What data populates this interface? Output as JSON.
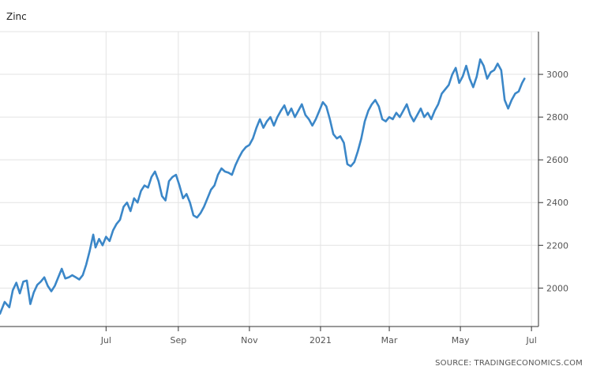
{
  "chart_data": {
    "type": "line",
    "title": "Zinc",
    "source": "SOURCE: TRADINGECONOMICS.COM",
    "ylim": [
      1820,
      3200
    ],
    "y_ticks": [
      2000,
      2200,
      2400,
      2600,
      2800,
      3000
    ],
    "x_ticks": [
      {
        "label": "Jul",
        "date": "2020-07-01"
      },
      {
        "label": "Sep",
        "date": "2020-09-01"
      },
      {
        "label": "Nov",
        "date": "2020-11-01"
      },
      {
        "label": "2021",
        "date": "2021-01-01"
      },
      {
        "label": "Mar",
        "date": "2021-03-01"
      },
      {
        "label": "May",
        "date": "2021-05-01"
      },
      {
        "label": "Jul",
        "date": "2021-07-01"
      }
    ],
    "grid": true,
    "axis_side": "right",
    "color": "#3b87c8",
    "series": [
      {
        "name": "",
        "points": [
          [
            "2020-04-01",
            1880
          ],
          [
            "2020-04-05",
            1935
          ],
          [
            "2020-04-09",
            1910
          ],
          [
            "2020-04-12",
            1990
          ],
          [
            "2020-04-15",
            2025
          ],
          [
            "2020-04-18",
            1975
          ],
          [
            "2020-04-21",
            2030
          ],
          [
            "2020-04-24",
            2035
          ],
          [
            "2020-04-27",
            1925
          ],
          [
            "2020-04-30",
            1980
          ],
          [
            "2020-05-03",
            2015
          ],
          [
            "2020-05-06",
            2030
          ],
          [
            "2020-05-09",
            2050
          ],
          [
            "2020-05-12",
            2010
          ],
          [
            "2020-05-15",
            1985
          ],
          [
            "2020-05-18",
            2010
          ],
          [
            "2020-05-21",
            2050
          ],
          [
            "2020-05-24",
            2090
          ],
          [
            "2020-05-27",
            2045
          ],
          [
            "2020-05-30",
            2050
          ],
          [
            "2020-06-02",
            2060
          ],
          [
            "2020-06-05",
            2050
          ],
          [
            "2020-06-08",
            2040
          ],
          [
            "2020-06-11",
            2060
          ],
          [
            "2020-06-14",
            2110
          ],
          [
            "2020-06-17",
            2175
          ],
          [
            "2020-06-20",
            2250
          ],
          [
            "2020-06-22",
            2190
          ],
          [
            "2020-06-25",
            2230
          ],
          [
            "2020-06-28",
            2200
          ],
          [
            "2020-07-01",
            2240
          ],
          [
            "2020-07-04",
            2220
          ],
          [
            "2020-07-07",
            2270
          ],
          [
            "2020-07-10",
            2300
          ],
          [
            "2020-07-13",
            2320
          ],
          [
            "2020-07-16",
            2380
          ],
          [
            "2020-07-19",
            2400
          ],
          [
            "2020-07-22",
            2360
          ],
          [
            "2020-07-25",
            2420
          ],
          [
            "2020-07-28",
            2400
          ],
          [
            "2020-07-31",
            2455
          ],
          [
            "2020-08-03",
            2480
          ],
          [
            "2020-08-06",
            2470
          ],
          [
            "2020-08-09",
            2520
          ],
          [
            "2020-08-12",
            2545
          ],
          [
            "2020-08-15",
            2500
          ],
          [
            "2020-08-18",
            2430
          ],
          [
            "2020-08-21",
            2410
          ],
          [
            "2020-08-24",
            2500
          ],
          [
            "2020-08-27",
            2520
          ],
          [
            "2020-08-30",
            2530
          ],
          [
            "2020-09-02",
            2480
          ],
          [
            "2020-09-05",
            2420
          ],
          [
            "2020-09-08",
            2440
          ],
          [
            "2020-09-11",
            2400
          ],
          [
            "2020-09-14",
            2340
          ],
          [
            "2020-09-17",
            2330
          ],
          [
            "2020-09-20",
            2350
          ],
          [
            "2020-09-23",
            2380
          ],
          [
            "2020-09-26",
            2420
          ],
          [
            "2020-09-29",
            2460
          ],
          [
            "2020-10-02",
            2480
          ],
          [
            "2020-10-05",
            2530
          ],
          [
            "2020-10-08",
            2560
          ],
          [
            "2020-10-11",
            2545
          ],
          [
            "2020-10-14",
            2540
          ],
          [
            "2020-10-17",
            2530
          ],
          [
            "2020-10-20",
            2575
          ],
          [
            "2020-10-23",
            2610
          ],
          [
            "2020-10-26",
            2640
          ],
          [
            "2020-10-29",
            2660
          ],
          [
            "2020-11-01",
            2670
          ],
          [
            "2020-11-04",
            2700
          ],
          [
            "2020-11-07",
            2750
          ],
          [
            "2020-11-10",
            2790
          ],
          [
            "2020-11-13",
            2750
          ],
          [
            "2020-11-16",
            2780
          ],
          [
            "2020-11-19",
            2800
          ],
          [
            "2020-11-22",
            2760
          ],
          [
            "2020-11-25",
            2800
          ],
          [
            "2020-11-28",
            2830
          ],
          [
            "2020-12-01",
            2855
          ],
          [
            "2020-12-04",
            2810
          ],
          [
            "2020-12-07",
            2840
          ],
          [
            "2020-12-10",
            2800
          ],
          [
            "2020-12-13",
            2830
          ],
          [
            "2020-12-16",
            2860
          ],
          [
            "2020-12-19",
            2810
          ],
          [
            "2020-12-22",
            2790
          ],
          [
            "2020-12-25",
            2760
          ],
          [
            "2020-12-28",
            2790
          ],
          [
            "2020-12-31",
            2830
          ],
          [
            "2021-01-03",
            2870
          ],
          [
            "2021-01-06",
            2850
          ],
          [
            "2021-01-09",
            2790
          ],
          [
            "2021-01-12",
            2720
          ],
          [
            "2021-01-15",
            2700
          ],
          [
            "2021-01-18",
            2710
          ],
          [
            "2021-01-21",
            2680
          ],
          [
            "2021-01-24",
            2580
          ],
          [
            "2021-01-27",
            2570
          ],
          [
            "2021-01-30",
            2590
          ],
          [
            "2021-02-02",
            2640
          ],
          [
            "2021-02-05",
            2700
          ],
          [
            "2021-02-08",
            2780
          ],
          [
            "2021-02-11",
            2830
          ],
          [
            "2021-02-14",
            2860
          ],
          [
            "2021-02-17",
            2880
          ],
          [
            "2021-02-20",
            2850
          ],
          [
            "2021-02-23",
            2790
          ],
          [
            "2021-02-26",
            2780
          ],
          [
            "2021-03-01",
            2800
          ],
          [
            "2021-03-04",
            2790
          ],
          [
            "2021-03-07",
            2820
          ],
          [
            "2021-03-10",
            2800
          ],
          [
            "2021-03-13",
            2830
          ],
          [
            "2021-03-16",
            2860
          ],
          [
            "2021-03-19",
            2810
          ],
          [
            "2021-03-22",
            2780
          ],
          [
            "2021-03-25",
            2810
          ],
          [
            "2021-03-28",
            2840
          ],
          [
            "2021-03-31",
            2800
          ],
          [
            "2021-04-03",
            2820
          ],
          [
            "2021-04-06",
            2790
          ],
          [
            "2021-04-09",
            2830
          ],
          [
            "2021-04-12",
            2860
          ],
          [
            "2021-04-15",
            2910
          ],
          [
            "2021-04-18",
            2930
          ],
          [
            "2021-04-21",
            2950
          ],
          [
            "2021-04-24",
            3000
          ],
          [
            "2021-04-27",
            3030
          ],
          [
            "2021-04-30",
            2960
          ],
          [
            "2021-05-03",
            2990
          ],
          [
            "2021-05-06",
            3040
          ],
          [
            "2021-05-09",
            2980
          ],
          [
            "2021-05-12",
            2940
          ],
          [
            "2021-05-15",
            2990
          ],
          [
            "2021-05-18",
            3070
          ],
          [
            "2021-05-21",
            3040
          ],
          [
            "2021-05-24",
            2980
          ],
          [
            "2021-05-27",
            3010
          ],
          [
            "2021-05-30",
            3020
          ],
          [
            "2021-06-02",
            3050
          ],
          [
            "2021-06-05",
            3020
          ],
          [
            "2021-06-08",
            2880
          ],
          [
            "2021-06-11",
            2840
          ],
          [
            "2021-06-14",
            2880
          ],
          [
            "2021-06-17",
            2910
          ],
          [
            "2021-06-20",
            2920
          ],
          [
            "2021-06-23",
            2960
          ],
          [
            "2021-06-25",
            2980
          ]
        ]
      }
    ]
  }
}
